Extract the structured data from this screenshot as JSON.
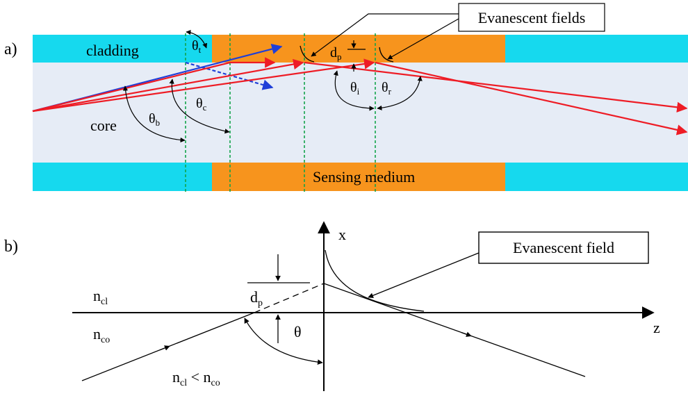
{
  "panel_a": {
    "letter": "a)",
    "cladding_label": "cladding",
    "core_label": "core",
    "sensing_label": "Sensing medium",
    "callout": "Evanescent fields",
    "dp": {
      "base": "d",
      "sub": "p"
    },
    "theta_t": {
      "base": "θ",
      "sub": "t"
    },
    "theta_c": {
      "base": "θ",
      "sub": "c"
    },
    "theta_b": {
      "base": "θ",
      "sub": "b"
    },
    "theta_i": {
      "base": "θ",
      "sub": "i"
    },
    "theta_r": {
      "base": "θ",
      "sub": "r"
    },
    "colors": {
      "cladding": "#16d9ee",
      "core": "#e6ecf6",
      "sensing": "#f7941d",
      "ray_red": "#ee1c25",
      "ray_blue": "#1f3fd8",
      "dash_green": "#12a44a"
    }
  },
  "panel_b": {
    "letter": "b)",
    "x_axis": "x",
    "z_axis": "z",
    "callout": "Evanescent field",
    "dp": {
      "base": "d",
      "sub": "p"
    },
    "n_cl": {
      "base": "n",
      "sub": "cl"
    },
    "n_co": {
      "base": "n",
      "sub": "co"
    },
    "theta": "θ",
    "condition": {
      "a": "n",
      "a_sub": "cl",
      "op": " < ",
      "b": "n",
      "b_sub": "co"
    }
  }
}
